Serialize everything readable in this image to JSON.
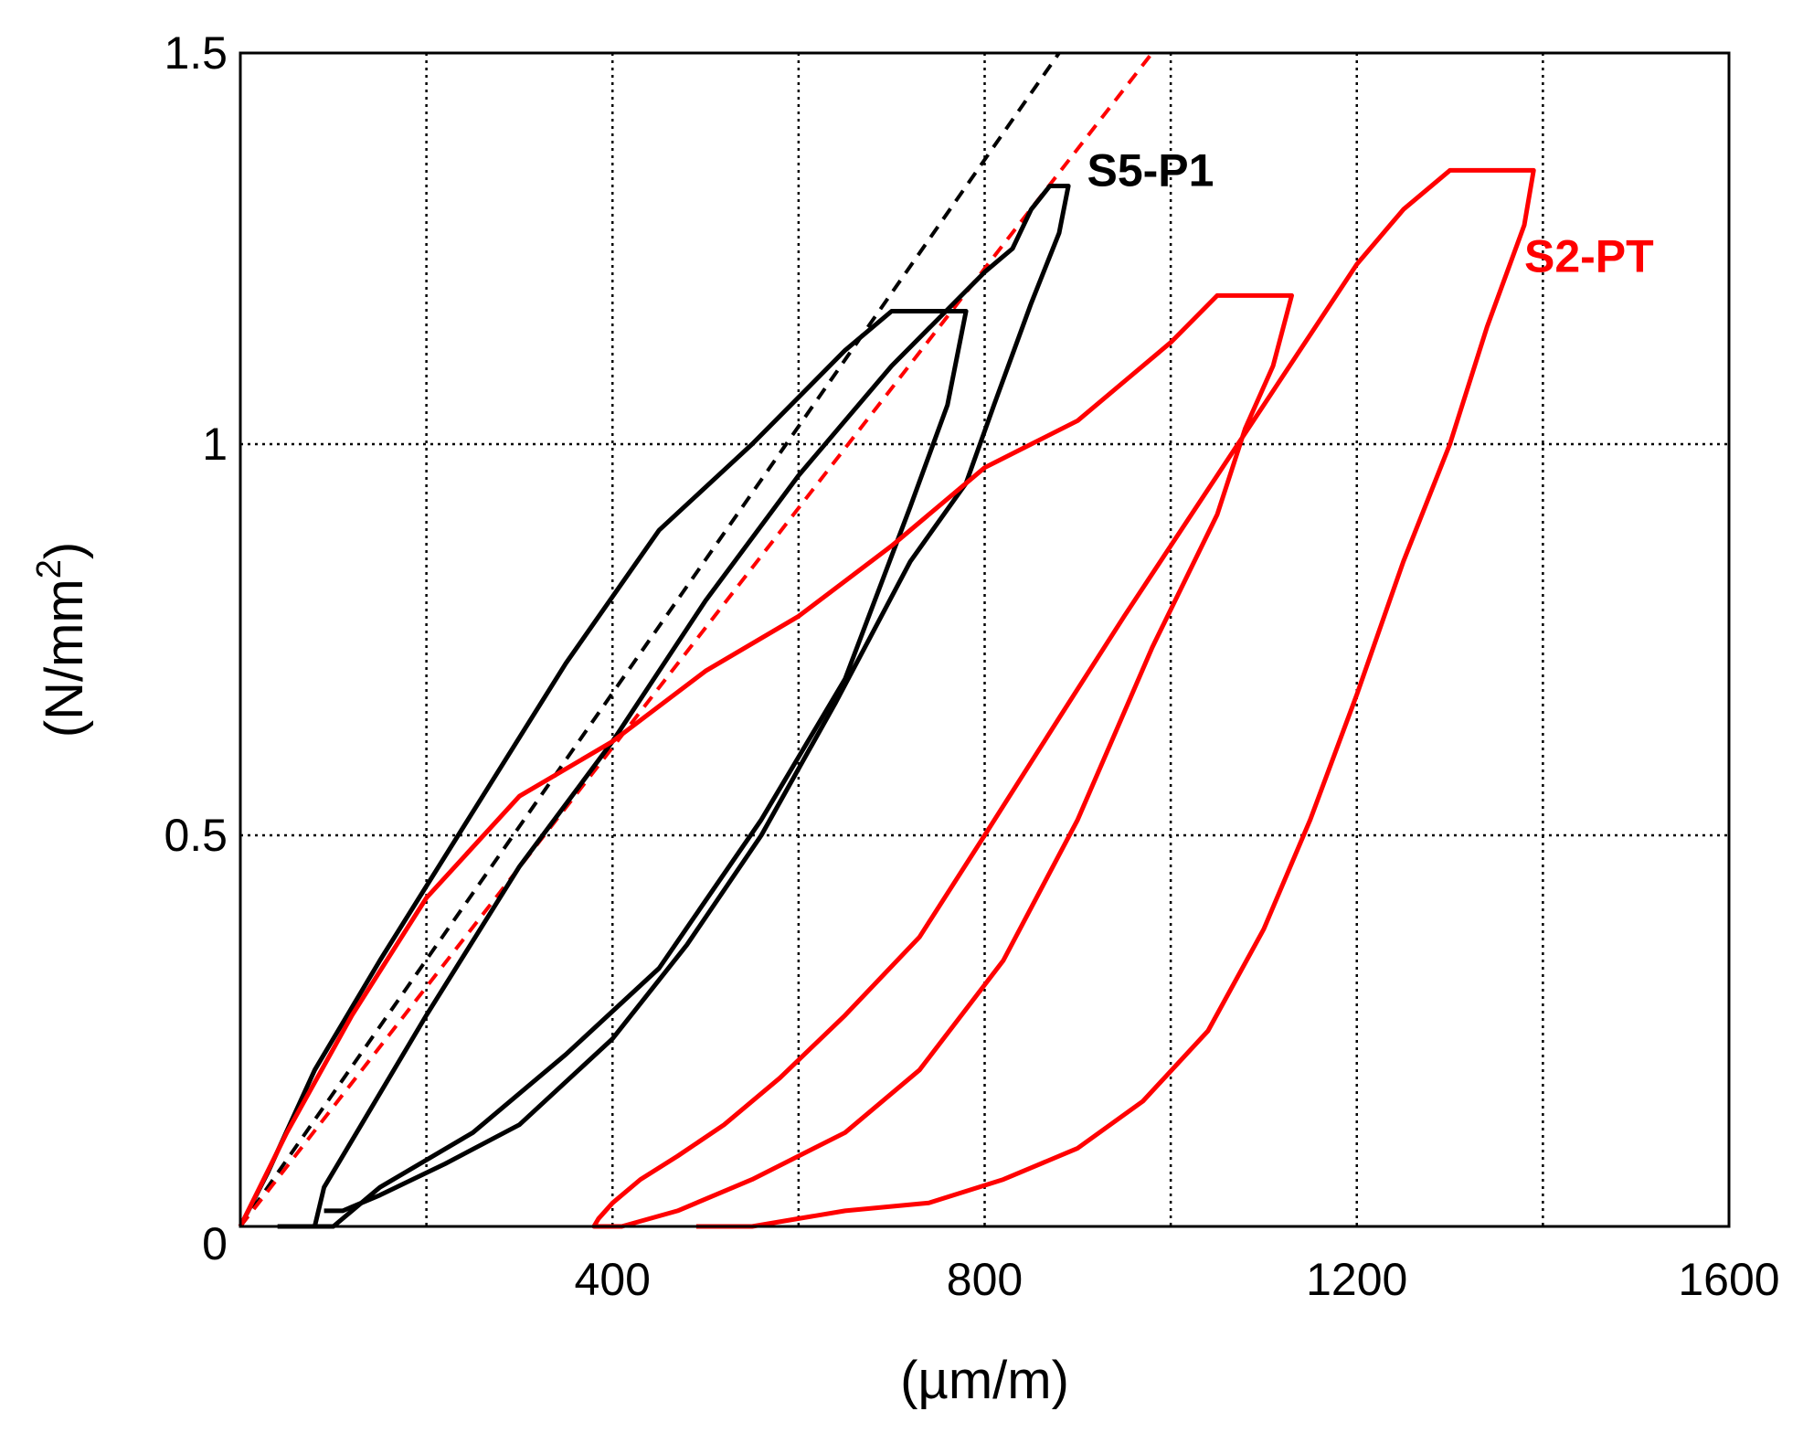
{
  "chart_data": {
    "type": "line",
    "title": "",
    "xlabel": "(µm/m)",
    "ylabel_parts": [
      "(N/mm",
      "2",
      ")"
    ],
    "xlim": [
      0,
      1600
    ],
    "ylim": [
      0,
      1.5
    ],
    "x_tick_labels": [
      {
        "value": 0,
        "label": "0"
      },
      {
        "value": 400,
        "label": "400"
      },
      {
        "value": 800,
        "label": "800"
      },
      {
        "value": 1200,
        "label": "1200"
      },
      {
        "value": 1600,
        "label": "1600"
      }
    ],
    "y_tick_labels": [
      {
        "value": 0.5,
        "label": "0.5"
      },
      {
        "value": 1,
        "label": "1"
      },
      {
        "value": 1.5,
        "label": "1.5"
      }
    ],
    "x_gridlines": [
      200,
      400,
      600,
      800,
      1000,
      1200,
      1400
    ],
    "y_gridlines": [
      0.5,
      1
    ],
    "grid_style": "dotted",
    "series": [
      {
        "name": "S5-P1",
        "color": "#000000",
        "label_at": [
          910,
          1.33
        ],
        "loops": [
          [
            [
              0,
              0
            ],
            [
              30,
              0.07
            ],
            [
              80,
              0.2
            ],
            [
              150,
              0.34
            ],
            [
              250,
              0.53
            ],
            [
              350,
              0.72
            ],
            [
              450,
              0.89
            ],
            [
              550,
              1.0
            ],
            [
              650,
              1.12
            ],
            [
              700,
              1.17
            ],
            [
              780,
              1.17
            ],
            [
              760,
              1.05
            ],
            [
              720,
              0.92
            ],
            [
              650,
              0.7
            ],
            [
              560,
              0.52
            ],
            [
              450,
              0.33
            ],
            [
              350,
              0.22
            ],
            [
              250,
              0.12
            ],
            [
              150,
              0.05
            ],
            [
              100,
              0.0
            ],
            [
              40,
              0.0
            ]
          ],
          [
            [
              80,
              0.0
            ],
            [
              90,
              0.05
            ],
            [
              130,
              0.13
            ],
            [
              200,
              0.27
            ],
            [
              300,
              0.46
            ],
            [
              400,
              0.62
            ],
            [
              500,
              0.8
            ],
            [
              600,
              0.96
            ],
            [
              700,
              1.1
            ],
            [
              800,
              1.22
            ],
            [
              830,
              1.25
            ],
            [
              850,
              1.3
            ],
            [
              870,
              1.33
            ],
            [
              890,
              1.33
            ],
            [
              880,
              1.27
            ],
            [
              850,
              1.18
            ],
            [
              810,
              1.05
            ],
            [
              780,
              0.95
            ],
            [
              720,
              0.85
            ],
            [
              640,
              0.67
            ],
            [
              560,
              0.5
            ],
            [
              480,
              0.36
            ],
            [
              400,
              0.24
            ],
            [
              300,
              0.13
            ],
            [
              220,
              0.08
            ],
            [
              150,
              0.04
            ],
            [
              110,
              0.02
            ],
            [
              90,
              0.02
            ]
          ]
        ]
      },
      {
        "name": "S2-PT",
        "color": "#ff0000",
        "label_at": [
          1380,
          1.22
        ],
        "loops": [
          [
            [
              0,
              0
            ],
            [
              50,
              0.12
            ],
            [
              120,
              0.27
            ],
            [
              200,
              0.42
            ],
            [
              300,
              0.55
            ],
            [
              400,
              0.62
            ],
            [
              500,
              0.71
            ],
            [
              600,
              0.78
            ],
            [
              700,
              0.87
            ],
            [
              800,
              0.97
            ],
            [
              850,
              1.0
            ],
            [
              900,
              1.03
            ],
            [
              950,
              1.08
            ],
            [
              1000,
              1.13
            ],
            [
              1050,
              1.19
            ],
            [
              1130,
              1.19
            ],
            [
              1110,
              1.1
            ],
            [
              1080,
              1.02
            ],
            [
              1050,
              0.91
            ],
            [
              980,
              0.74
            ],
            [
              900,
              0.52
            ],
            [
              820,
              0.34
            ],
            [
              730,
              0.2
            ],
            [
              650,
              0.12
            ],
            [
              550,
              0.06
            ],
            [
              470,
              0.02
            ],
            [
              410,
              0.0
            ],
            [
              380,
              0.0
            ],
            [
              385,
              0.01
            ],
            [
              400,
              0.03
            ],
            [
              430,
              0.06
            ],
            [
              470,
              0.09
            ],
            [
              520,
              0.13
            ],
            [
              580,
              0.19
            ],
            [
              650,
              0.27
            ],
            [
              730,
              0.37
            ],
            [
              800,
              0.5
            ],
            [
              880,
              0.65
            ],
            [
              950,
              0.78
            ],
            [
              1000,
              0.87
            ],
            [
              1050,
              0.96
            ],
            [
              1100,
              1.05
            ],
            [
              1150,
              1.14
            ],
            [
              1200,
              1.23
            ],
            [
              1250,
              1.3
            ],
            [
              1300,
              1.35
            ],
            [
              1390,
              1.35
            ],
            [
              1380,
              1.28
            ],
            [
              1340,
              1.15
            ],
            [
              1300,
              1.0
            ],
            [
              1250,
              0.85
            ],
            [
              1200,
              0.68
            ],
            [
              1150,
              0.52
            ],
            [
              1100,
              0.38
            ],
            [
              1040,
              0.25
            ],
            [
              970,
              0.16
            ],
            [
              900,
              0.1
            ],
            [
              820,
              0.06
            ],
            [
              740,
              0.03
            ],
            [
              650,
              0.02
            ],
            [
              600,
              0.01
            ],
            [
              550,
              0.0
            ],
            [
              490,
              0.0
            ]
          ]
        ]
      }
    ],
    "fit_lines": [
      {
        "name": "S5-P1 tangent",
        "color": "#000000",
        "dash": "dashed",
        "points": [
          [
            0,
            0
          ],
          [
            880,
            1.5
          ]
        ]
      },
      {
        "name": "S2-PT tangent",
        "color": "#ff0000",
        "dash": "dashed",
        "points": [
          [
            0,
            0
          ],
          [
            980,
            1.5
          ]
        ]
      }
    ]
  }
}
